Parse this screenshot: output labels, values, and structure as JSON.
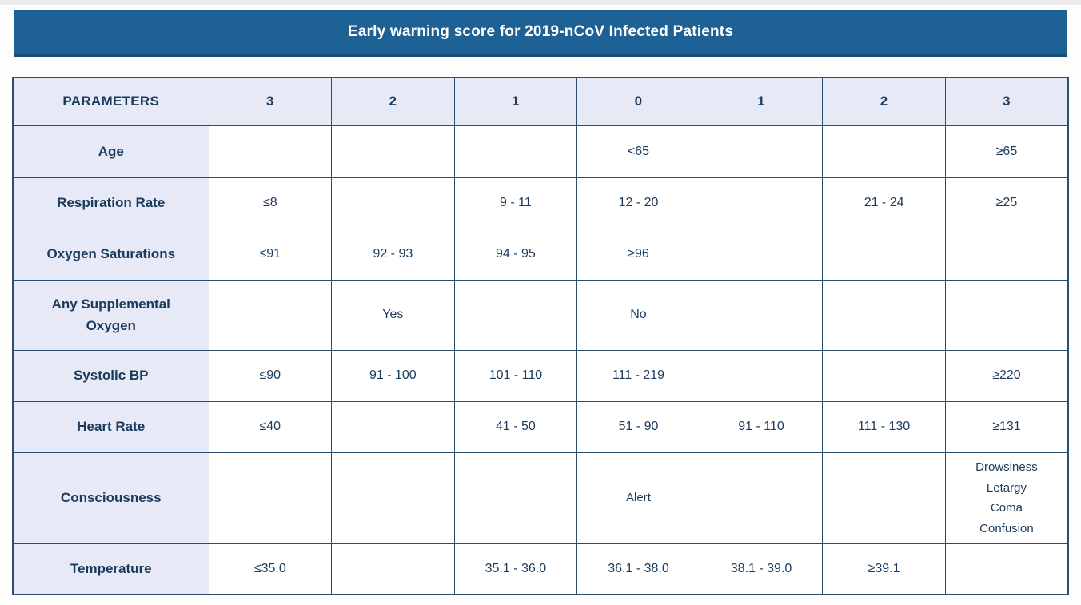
{
  "banner": {
    "title": "Early warning score for 2019-nCoV Infected Patients"
  },
  "table": {
    "columns": [
      "PARAMETERS",
      "3",
      "2",
      "1",
      "0",
      "1",
      "2",
      "3"
    ],
    "rows": [
      {
        "label": "Age",
        "cells": [
          "",
          "",
          "",
          "<65",
          "",
          "",
          "≥65"
        ]
      },
      {
        "label": "Respiration Rate",
        "cells": [
          "≤8",
          "",
          "9 - 11",
          "12 - 20",
          "",
          "21 - 24",
          "≥25"
        ]
      },
      {
        "label": "Oxygen Saturations",
        "cells": [
          "≤91",
          "92 - 93",
          "94 - 95",
          "≥96",
          "",
          "",
          ""
        ]
      },
      {
        "label": "Any Supplemental Oxygen",
        "cells": [
          "",
          "Yes",
          "",
          "No",
          "",
          "",
          ""
        ]
      },
      {
        "label": "Systolic BP",
        "cells": [
          "≤90",
          "91 - 100",
          "101 - 110",
          "111 - 219",
          "",
          "",
          "≥220"
        ]
      },
      {
        "label": "Heart Rate",
        "cells": [
          "≤40",
          "",
          "41 - 50",
          "51 - 90",
          "91 - 110",
          "111 - 130",
          "≥131"
        ]
      },
      {
        "label": "Consciousness",
        "cells": [
          "",
          "",
          "",
          "Alert",
          "",
          "",
          "Drowsiness\nLetargy\nComa\nConfusion"
        ]
      },
      {
        "label": "Temperature",
        "cells": [
          "≤35.0",
          "",
          "35.1 - 36.0",
          "36.1 - 38.0",
          "38.1 - 39.0",
          "≥39.1",
          ""
        ]
      }
    ]
  },
  "colors": {
    "accent_blue": "#1e6295",
    "accent_blue_dark": "#175078",
    "cell_bg": "#e7e9f6",
    "data_bg": "#ffffff",
    "border_color": "#2d4f6e",
    "text_navy": "#1b3b5d",
    "banner_text": "#ffffff"
  }
}
